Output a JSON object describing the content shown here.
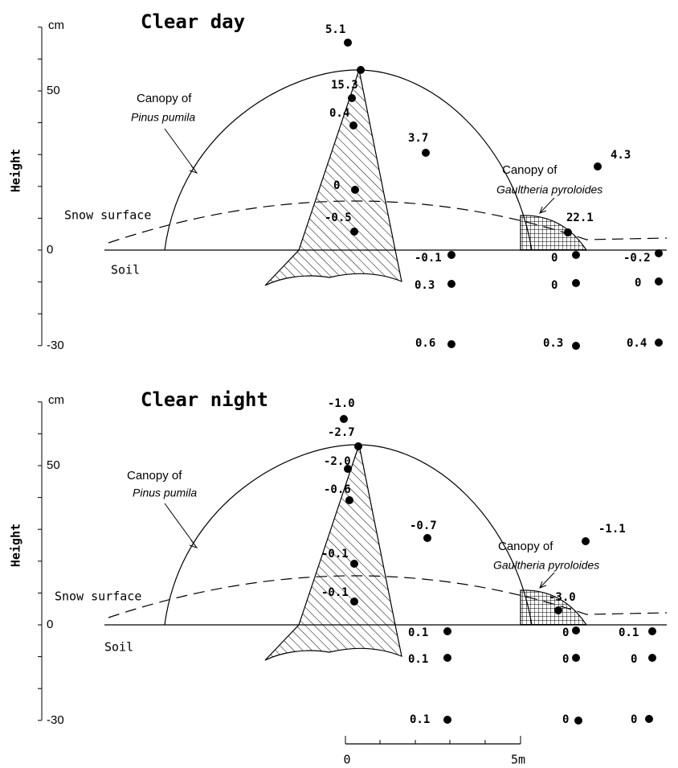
{
  "panels": [
    {
      "title": "Clear day",
      "axis": {
        "label": "Height",
        "unit": "cm",
        "ticks": [
          "50",
          "0",
          "-30"
        ]
      },
      "annotations": {
        "pinus": [
          "Canopy of",
          "Pinus pumila"
        ],
        "snow": "Snow surface",
        "soil": "Soil",
        "gaultheria": [
          "Canopy of",
          "Gaultheria pyroloides"
        ]
      },
      "points": [
        "5.1",
        "15.3",
        "0.4",
        "3.7",
        "4.3",
        "0",
        "-0.5",
        "22.1",
        "-0.1",
        "0",
        "-0.2",
        "0.3",
        "0",
        "0",
        "0.6",
        "0.3",
        "0.4"
      ]
    },
    {
      "title": "Clear night",
      "axis": {
        "label": "Height",
        "unit": "cm",
        "ticks": [
          "50",
          "0",
          "-30"
        ]
      },
      "annotations": {
        "pinus": [
          "Canopy of",
          "Pinus pumila"
        ],
        "snow": "Snow surface",
        "soil": "Soil",
        "gaultheria": [
          "Canopy of",
          "Gaultheria pyroloides"
        ]
      },
      "points": [
        "-1.0",
        "-2.7",
        "-2.0",
        "-0.6",
        "-0.7",
        "-1.1",
        "-0.1",
        "-0.1",
        "-3.0",
        "0.1",
        "0",
        "0.1",
        "0.1",
        "0",
        "0",
        "0.1",
        "0",
        "0"
      ]
    }
  ],
  "scale_bar": {
    "start": "0",
    "end": "5m"
  }
}
